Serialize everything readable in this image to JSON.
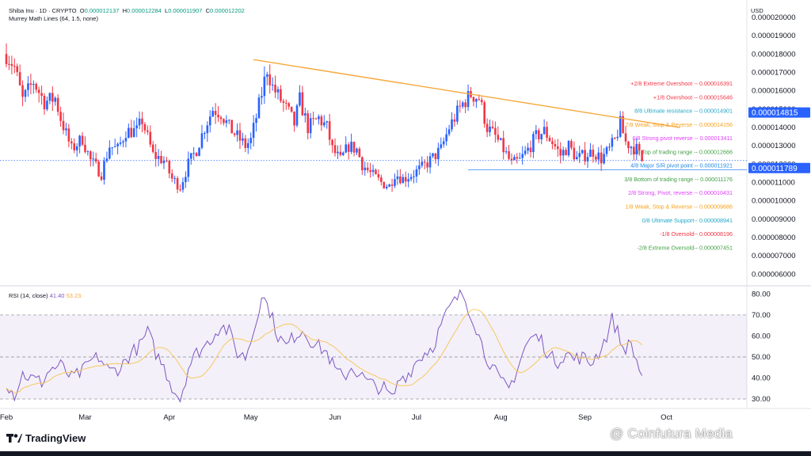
{
  "header": {
    "symbol": "Shiba Inu · 1D · CRYPTO",
    "ohlc": [
      {
        "label": "O",
        "value": "0.000012137"
      },
      {
        "label": "H",
        "value": "0.000012284"
      },
      {
        "label": "L",
        "value": "0.000011907"
      },
      {
        "label": "C",
        "value": "0.000012202"
      }
    ],
    "indicator": "Murrey Math Lines (64, 1.5, none)",
    "currency": "USD"
  },
  "rsi_legend": {
    "name": "RSI (14, close)",
    "rsi": "41.40",
    "ma": "53.23"
  },
  "brand": "TradingView",
  "watermark": "@ Coinfutura Media",
  "colors": {
    "up": "#2962ff",
    "down": "#f23645",
    "trend": "#f7a83b",
    "rsi": "#7e57c2",
    "rsi_ma": "#f7c85e"
  },
  "price_badges": [
    {
      "value": "0.000014815",
      "color": "#2962ff"
    },
    {
      "value": "0.000011789",
      "color": "#2962ff"
    }
  ],
  "chart_data": [
    {
      "type": "candlestick",
      "title": "Shiba Inu · 1D · CRYPTO",
      "xlabel": "",
      "ylabel": "",
      "ylim": [
        5.5e-06,
        2e-05
      ],
      "y_ticks": [
        "0.000020000",
        "0.000019000",
        "0.000018000",
        "0.000017000",
        "0.000016000",
        "0.000015000",
        "0.000014000",
        "0.000013000",
        "0.000012000",
        "0.000011000",
        "0.000010000",
        "0.000009000",
        "0.000008000",
        "0.000007000",
        "0.000006000"
      ],
      "x_ticks": [
        {
          "label": "Feb",
          "day": 0
        },
        {
          "label": "Mar",
          "day": 29
        },
        {
          "label": "Apr",
          "day": 60
        },
        {
          "label": "May",
          "day": 90
        },
        {
          "label": "Jun",
          "day": 121
        },
        {
          "label": "Jul",
          "day": 151
        },
        {
          "label": "Aug",
          "day": 182
        },
        {
          "label": "Sep",
          "day": 213
        },
        {
          "label": "Oct",
          "day": 243
        }
      ],
      "close_anchors": [
        [
          0,
          1.8e-05
        ],
        [
          3,
          1.73e-05
        ],
        [
          6,
          1.55e-05
        ],
        [
          10,
          1.65e-05
        ],
        [
          14,
          1.54e-05
        ],
        [
          18,
          1.56e-05
        ],
        [
          20,
          1.45e-05
        ],
        [
          24,
          1.28e-05
        ],
        [
          28,
          1.34e-05
        ],
        [
          31,
          1.22e-05
        ],
        [
          35,
          1.15e-05
        ],
        [
          38,
          1.3e-05
        ],
        [
          41,
          1.28e-05
        ],
        [
          44,
          1.38e-05
        ],
        [
          48,
          1.38e-05
        ],
        [
          50,
          1.44e-05
        ],
        [
          54,
          1.25e-05
        ],
        [
          58,
          1.22e-05
        ],
        [
          61,
          1.12e-05
        ],
        [
          64,
          1.08e-05
        ],
        [
          67,
          1.2e-05
        ],
        [
          70,
          1.28e-05
        ],
        [
          73,
          1.4e-05
        ],
        [
          76,
          1.5e-05
        ],
        [
          79,
          1.48e-05
        ],
        [
          82,
          1.4e-05
        ],
        [
          85,
          1.35e-05
        ],
        [
          88,
          1.3e-05
        ],
        [
          90,
          1.33e-05
        ],
        [
          93,
          1.52e-05
        ],
        [
          96,
          1.72e-05
        ],
        [
          98,
          1.62e-05
        ],
        [
          101,
          1.55e-05
        ],
        [
          104,
          1.48e-05
        ],
        [
          106,
          1.42e-05
        ],
        [
          108,
          1.55e-05
        ],
        [
          111,
          1.4e-05
        ],
        [
          115,
          1.45e-05
        ],
        [
          118,
          1.4e-05
        ],
        [
          120,
          1.28e-05
        ],
        [
          123,
          1.22e-05
        ],
        [
          126,
          1.3e-05
        ],
        [
          129,
          1.28e-05
        ],
        [
          131,
          1.2e-05
        ],
        [
          134,
          1.15e-05
        ],
        [
          138,
          1.1e-05
        ],
        [
          141,
          1.08e-05
        ],
        [
          143,
          1.15e-05
        ],
        [
          146,
          1.12e-05
        ],
        [
          150,
          1.15e-05
        ],
        [
          153,
          1.18e-05
        ],
        [
          156,
          1.22e-05
        ],
        [
          160,
          1.28e-05
        ],
        [
          163,
          1.4e-05
        ],
        [
          166,
          1.48e-05
        ],
        [
          168,
          1.53e-05
        ],
        [
          171,
          1.58e-05
        ],
        [
          174,
          1.56e-05
        ],
        [
          177,
          1.4e-05
        ],
        [
          180,
          1.35e-05
        ],
        [
          183,
          1.28e-05
        ],
        [
          186,
          1.2e-05
        ],
        [
          189,
          1.22e-05
        ],
        [
          192,
          1.28e-05
        ],
        [
          195,
          1.35e-05
        ],
        [
          198,
          1.38e-05
        ],
        [
          201,
          1.32e-05
        ],
        [
          204,
          1.25e-05
        ],
        [
          207,
          1.3e-05
        ],
        [
          210,
          1.23e-05
        ],
        [
          213,
          1.25e-05
        ],
        [
          216,
          1.27e-05
        ],
        [
          219,
          1.23e-05
        ],
        [
          222,
          1.28e-05
        ],
        [
          224,
          1.33e-05
        ],
        [
          226,
          1.42e-05
        ],
        [
          228,
          1.32e-05
        ],
        [
          230,
          1.3e-05
        ],
        [
          232,
          1.28e-05
        ],
        [
          234,
          1.22e-05
        ]
      ],
      "trendline": {
        "from": {
          "day": 91,
          "price": 1.77e-05
        },
        "to": {
          "day": 248,
          "price": 1.4e-05
        }
      },
      "support_line": {
        "from_day": 170,
        "price": 1.17e-05
      }
    },
    {
      "type": "line",
      "title": "RSI (14, close)",
      "series_names": [
        "RSI",
        "RSI-based MA"
      ],
      "ylim": [
        27,
        82
      ],
      "y_ticks": [
        "80.00",
        "70.00",
        "60.00",
        "50.00",
        "40.00",
        "30.00"
      ],
      "band": [
        30,
        70
      ],
      "midline": 50,
      "anchors": [
        [
          0,
          38
        ],
        [
          3,
          32
        ],
        [
          6,
          42
        ],
        [
          9,
          40
        ],
        [
          13,
          38
        ],
        [
          16,
          44
        ],
        [
          20,
          46
        ],
        [
          24,
          40
        ],
        [
          28,
          43
        ],
        [
          31,
          48
        ],
        [
          34,
          50
        ],
        [
          38,
          43
        ],
        [
          42,
          45
        ],
        [
          46,
          52
        ],
        [
          49,
          55
        ],
        [
          52,
          62
        ],
        [
          55,
          52
        ],
        [
          58,
          45
        ],
        [
          61,
          36
        ],
        [
          64,
          30
        ],
        [
          67,
          45
        ],
        [
          70,
          52
        ],
        [
          73,
          55
        ],
        [
          76,
          60
        ],
        [
          79,
          65
        ],
        [
          82,
          62
        ],
        [
          85,
          52
        ],
        [
          88,
          50
        ],
        [
          91,
          62
        ],
        [
          94,
          80
        ],
        [
          97,
          72
        ],
        [
          100,
          60
        ],
        [
          103,
          55
        ],
        [
          106,
          60
        ],
        [
          109,
          63
        ],
        [
          112,
          58
        ],
        [
          115,
          55
        ],
        [
          118,
          52
        ],
        [
          121,
          44
        ],
        [
          124,
          40
        ],
        [
          127,
          45
        ],
        [
          130,
          42
        ],
        [
          133,
          38
        ],
        [
          136,
          36
        ],
        [
          139,
          35
        ],
        [
          142,
          30
        ],
        [
          145,
          40
        ],
        [
          148,
          42
        ],
        [
          151,
          48
        ],
        [
          154,
          52
        ],
        [
          157,
          55
        ],
        [
          160,
          65
        ],
        [
          163,
          73
        ],
        [
          166,
          78
        ],
        [
          168,
          80
        ],
        [
          170,
          74
        ],
        [
          173,
          64
        ],
        [
          176,
          52
        ],
        [
          179,
          45
        ],
        [
          182,
          38
        ],
        [
          185,
          35
        ],
        [
          188,
          44
        ],
        [
          191,
          55
        ],
        [
          194,
          60
        ],
        [
          197,
          58
        ],
        [
          200,
          50
        ],
        [
          203,
          48
        ],
        [
          206,
          52
        ],
        [
          209,
          49
        ],
        [
          212,
          50
        ],
        [
          215,
          47
        ],
        [
          218,
          52
        ],
        [
          221,
          60
        ],
        [
          223,
          68
        ],
        [
          225,
          62
        ],
        [
          227,
          54
        ],
        [
          230,
          56
        ],
        [
          232,
          48
        ],
        [
          234,
          41
        ]
      ]
    }
  ],
  "murrey_levels": [
    {
      "label": "+2/8 Extreme Overshoot --",
      "value": "0.000016391",
      "color": "#f23645"
    },
    {
      "label": "+1/8 Overshoot --",
      "value": "0.000015646",
      "color": "#f23645"
    },
    {
      "label": "8/8 Ultimate resistance --",
      "value": "0.000014901",
      "color": "#22a7c7"
    },
    {
      "label": "7/8 Weak, Stop & Reverse --",
      "value": "0.000014156",
      "color": "#f7a21b"
    },
    {
      "label": "6/8 Strong pivot reverse --",
      "value": "0.000013411",
      "color": "#e040fb"
    },
    {
      "label": "5/8 Top of trading range --",
      "value": "0.000012666",
      "color": "#43a047"
    },
    {
      "label": "4/8 Major S/R pivot point --",
      "value": "0.000011921",
      "color": "#1e88e5"
    },
    {
      "label": "3/8 Bottom of trading range --",
      "value": "0.000011176",
      "color": "#43a047"
    },
    {
      "label": "2/8 Strong, Pivot, reverse --",
      "value": "0.000010431",
      "color": "#e040fb"
    },
    {
      "label": "1/8 Weak, Stop & Reverse --",
      "value": "0.000009686",
      "color": "#f7a21b"
    },
    {
      "label": "0/8 Ultimate Support--",
      "value": "0.000008941",
      "color": "#22a7c7"
    },
    {
      "label": "-1/8 Oversold--",
      "value": "0.000008196",
      "color": "#f23645"
    },
    {
      "label": "-2/8 Extreme Oversold--",
      "value": "0.000007451",
      "color": "#43a047"
    }
  ]
}
